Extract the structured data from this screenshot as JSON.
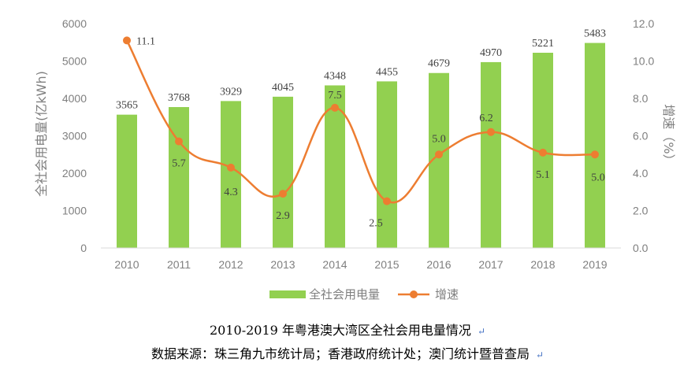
{
  "chart_data": {
    "type": "bar+line",
    "categories": [
      "2010",
      "2011",
      "2012",
      "2013",
      "2014",
      "2015",
      "2016",
      "2017",
      "2018",
      "2019"
    ],
    "series": [
      {
        "name": "全社会用电量",
        "type": "bar",
        "axis": "left",
        "color": "#92d050",
        "values": [
          3565,
          3768,
          3929,
          4045,
          4348,
          4455,
          4679,
          4970,
          5221,
          5483
        ]
      },
      {
        "name": "增速",
        "type": "line",
        "axis": "right",
        "color": "#ed7d31",
        "values": [
          11.1,
          5.7,
          4.3,
          2.9,
          7.5,
          2.5,
          5.0,
          6.2,
          5.1,
          5.0
        ]
      }
    ],
    "bar_labels": [
      "3565",
      "3768",
      "3929",
      "4045",
      "4348",
      "4455",
      "4679",
      "4970",
      "5221",
      "5483"
    ],
    "line_labels": [
      "11.1",
      "5.7",
      "4.3",
      "2.9",
      "7.5",
      "2.5",
      "5.0",
      "6.2",
      "5.1",
      "5.0"
    ],
    "ylabel_left": "全社会用电量(亿kWh)",
    "ylabel_right": "增速（%）",
    "ylim_left": [
      0,
      6000
    ],
    "ylim_right": [
      0,
      12
    ],
    "yticks_left": [
      "0",
      "1000",
      "2000",
      "3000",
      "4000",
      "5000",
      "6000"
    ],
    "yticks_right": [
      "0.0",
      "2.0",
      "4.0",
      "6.0",
      "8.0",
      "10.0",
      "12.0"
    ],
    "grid": false,
    "legend_position": "bottom"
  },
  "caption": {
    "title": "2010-2019 年粤港澳大湾区全社会用电量情况",
    "source": "数据来源：珠三角九市统计局；香港政府统计处；澳门统计暨普查局"
  },
  "mark_glyph": "↵"
}
